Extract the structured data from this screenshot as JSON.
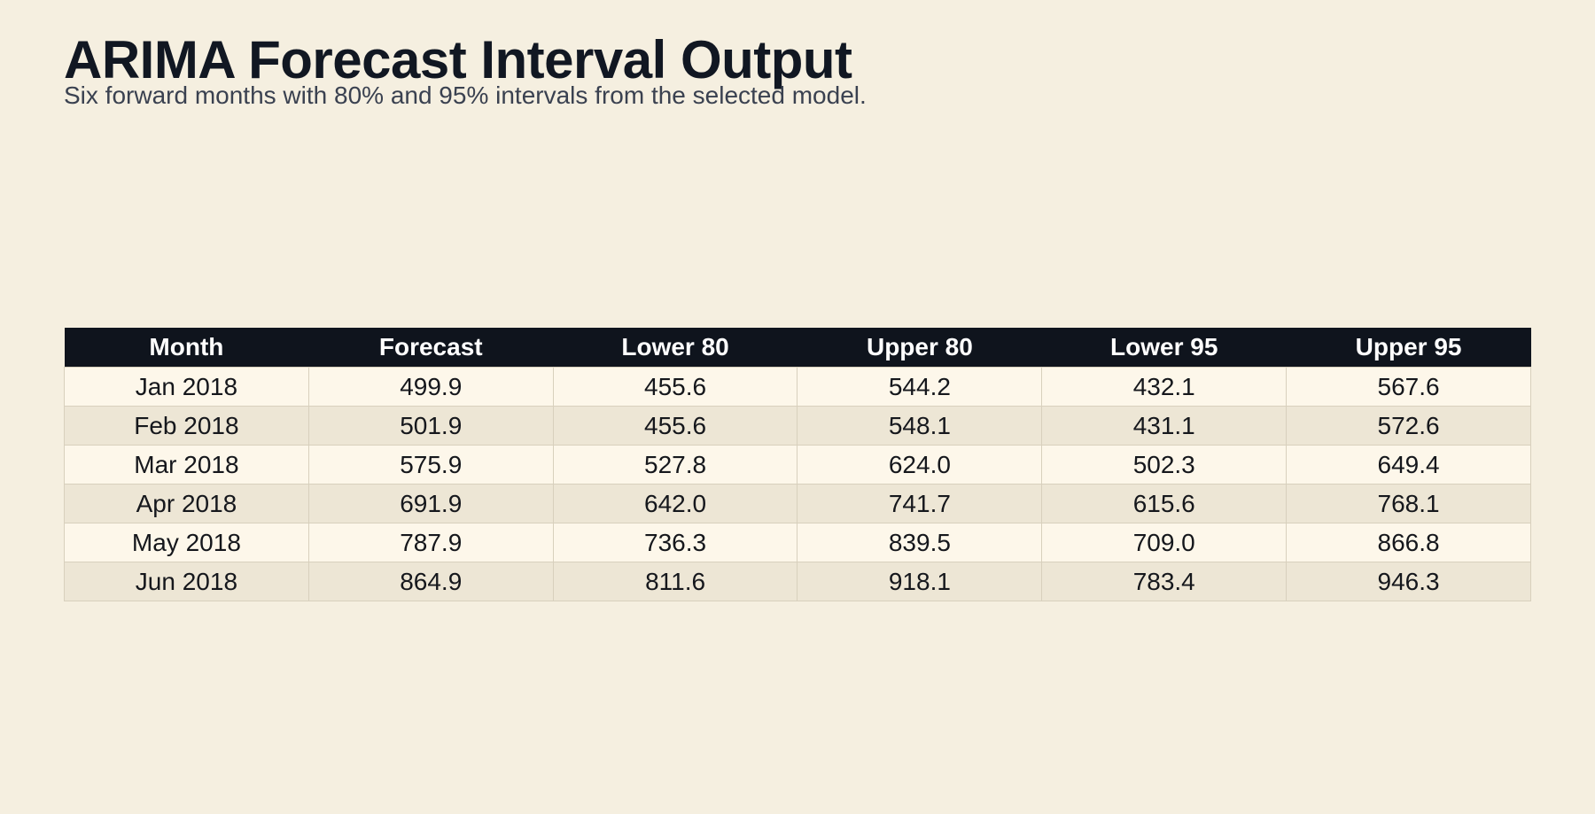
{
  "title": "ARIMA Forecast Interval Output",
  "subtitle": "Six forward months with 80% and 95% intervals from the selected model.",
  "colors": {
    "page_background": "#f5efe0",
    "title_text": "#111722",
    "header_background": "#0f141d",
    "header_text": "#ffffff",
    "row_odd": "#fdf7ea",
    "row_even": "#ede6d5",
    "grid_line": "#d8d0bd"
  },
  "chart_data": {
    "type": "table",
    "title": "ARIMA Forecast Interval Output",
    "subtitle": "Six forward months with 80% and 95% intervals from the selected model.",
    "columns": [
      "Month",
      "Forecast",
      "Lower 80",
      "Upper 80",
      "Lower 95",
      "Upper 95"
    ],
    "rows": [
      [
        "Jan 2018",
        "499.9",
        "455.6",
        "544.2",
        "432.1",
        "567.6"
      ],
      [
        "Feb 2018",
        "501.9",
        "455.6",
        "548.1",
        "431.1",
        "572.6"
      ],
      [
        "Mar 2018",
        "575.9",
        "527.8",
        "624.0",
        "502.3",
        "649.4"
      ],
      [
        "Apr 2018",
        "691.9",
        "642.0",
        "741.7",
        "615.6",
        "768.1"
      ],
      [
        "May 2018",
        "787.9",
        "736.3",
        "839.5",
        "709.0",
        "866.8"
      ],
      [
        "Jun 2018",
        "864.9",
        "811.6",
        "918.1",
        "783.4",
        "946.3"
      ]
    ]
  }
}
